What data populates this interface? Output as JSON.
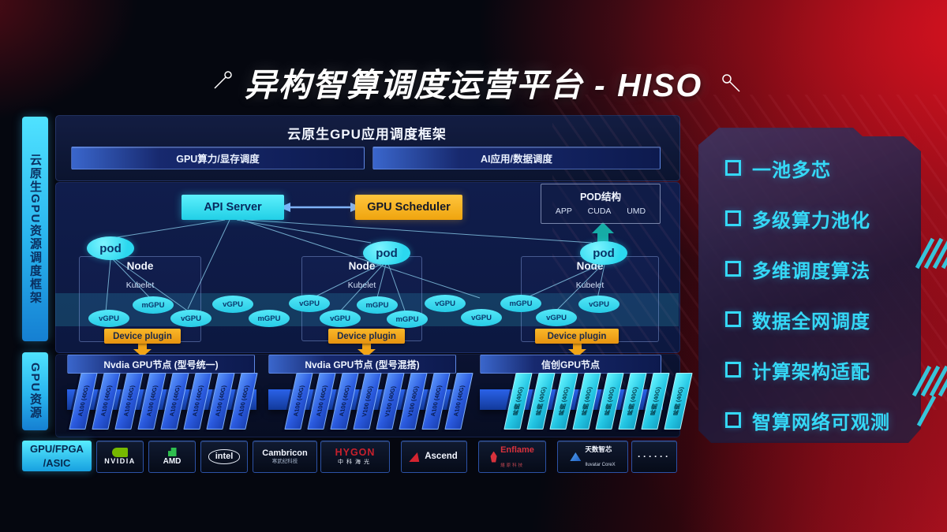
{
  "title": "异构智算调度运营平台 - HISO",
  "sidebar": {
    "top_label": "云原生GPU资源调度框架",
    "bottom_label": "GPU资源"
  },
  "framework": {
    "header": "云原生GPU应用调度框架",
    "bar_left": "GPU算力/显存调度",
    "bar_right": "AI应用/数据调度"
  },
  "core": {
    "api_server": "API Server",
    "gpu_scheduler": "GPU Scheduler",
    "pod_struct": {
      "title": "POD结构",
      "items": [
        "APP",
        "CUDA",
        "UMD"
      ]
    },
    "pod_label": "pod",
    "node_label": "Node",
    "kubelet_label": "Kubelet",
    "device_plugin": "Device plugin",
    "gpu_units": [
      "vGPU",
      "mGPU",
      "vGPU",
      "vGPU",
      "mGPU",
      "vGPU",
      "vGPU",
      "mGPU",
      "mGPU",
      "vGPU",
      "vGPU",
      "mGPU",
      "vGPU",
      "vGPU"
    ]
  },
  "gpu_groups": [
    {
      "title": "Nvdia GPU节点 (型号统一)",
      "cards": [
        "A100 (40G)",
        "A100 (40G)",
        "A100 (40G)",
        "A100 (40G)",
        "A100 (40G)",
        "A100 (40G)",
        "A100 (40G)",
        "A100 (40G)"
      ]
    },
    {
      "title": "Nvdia GPU节点 (型号混搭)",
      "cards": [
        "A100 (40G)",
        "A100 (40G)",
        "A100 (40G)",
        "V100 (40G)",
        "V100 (40G)",
        "V100 (40G)",
        "A100 (40G)",
        "A100 (40G)"
      ]
    },
    {
      "title": "信创GPU节点",
      "cards": [
        "昇腾 (40G)",
        "昇腾 (40G)",
        "昇腾 (40G)",
        "昇腾 (40G)",
        "昇腾 (40G)",
        "昇腾 (40G)",
        "昇腾 (40G)",
        "昇腾 (40G)"
      ]
    }
  ],
  "hardware": {
    "label_line1": "GPU/FPGA",
    "label_line2": "/ASIC",
    "vendors": [
      {
        "name": "NVIDIA",
        "sub": ""
      },
      {
        "name": "AMD",
        "sub": ""
      },
      {
        "name": "intel",
        "sub": ""
      },
      {
        "name": "Cambricon",
        "sub": "寒武纪科技"
      },
      {
        "name": "HYGON",
        "sub": "中科海光"
      },
      {
        "name": "Ascend",
        "sub": ""
      },
      {
        "name": "Enflame",
        "sub": "燧原科技"
      },
      {
        "name": "天数智芯",
        "sub": "Iluvatar CoreX"
      },
      {
        "name": "······",
        "sub": ""
      }
    ]
  },
  "features": [
    "一池多芯",
    "多级算力池化",
    "多维调度算法",
    "数据全网调度",
    "计算架构适配",
    "智算网络可观测"
  ],
  "colors": {
    "cyan": "#2fd9ee",
    "orange": "#f6ad17",
    "card_blue": "#2a5ade",
    "card_cyan": "#22c4e2",
    "bg_red": "#b01220"
  }
}
